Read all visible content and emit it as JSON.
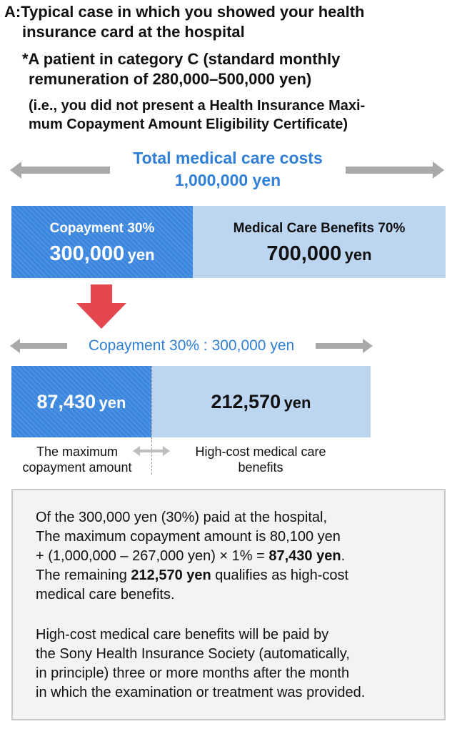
{
  "heading": {
    "line1": "A:Typical case in which you showed your health",
    "line2": "insurance card at the hospital",
    "note_line1": "*A patient in category C (standard monthly",
    "note_line2": "remuneration of 280,000–500,000 yen)",
    "paren_line1": "(i.e., you did not present a Health Insurance Maxi-",
    "paren_line2": "mum Copayment Amount Eligibility Certificate)"
  },
  "total": {
    "label": "Total medical care costs",
    "amount": "1,000,000 yen"
  },
  "bar1": {
    "left_title": "Copayment 30%",
    "left_amount": "300,000",
    "left_unit": "yen",
    "right_title": "Medical Care Benefits 70%",
    "right_amount": "700,000",
    "right_unit": "yen"
  },
  "copay_range": {
    "label": "Copayment 30% : 300,000 yen"
  },
  "bar2": {
    "left_amount": "87,430",
    "left_unit": "yen",
    "right_amount": "212,570",
    "right_unit": "yen"
  },
  "bar2_labels": {
    "left_line1": "The maximum",
    "left_line2": "copayment amount",
    "right_line1": "High-cost medical care",
    "right_line2": "benefits"
  },
  "explanation": {
    "p1_line1": "Of the 300,000 yen (30%) paid at the hospital,",
    "p1_line2": "The maximum copayment amount is 80,100 yen",
    "p1_line3_pre": "+ (1,000,000 – 267,000 yen) × 1% = ",
    "p1_line3_bold": "87,430 yen",
    "p1_line3_post": ".",
    "p1_line4_pre": "The remaining ",
    "p1_line4_bold": "212,570 yen",
    "p1_line4_post": " qualifies as high-cost",
    "p1_line5": "medical care benefits.",
    "p2_line1": "High-cost medical care benefits will be paid by",
    "p2_line2": "the Sony Health Insurance Society (automatically,",
    "p2_line3": "in principle) three or more months after the month",
    "p2_line4": "in which the examination or treatment was provided."
  },
  "colors": {
    "accent_blue": "#2f7fd6",
    "bar_dark": "#3a86df",
    "bar_light": "#bcd6f2",
    "down_arrow": "#e5474f",
    "gray_arrow": "#a9a9a9"
  }
}
